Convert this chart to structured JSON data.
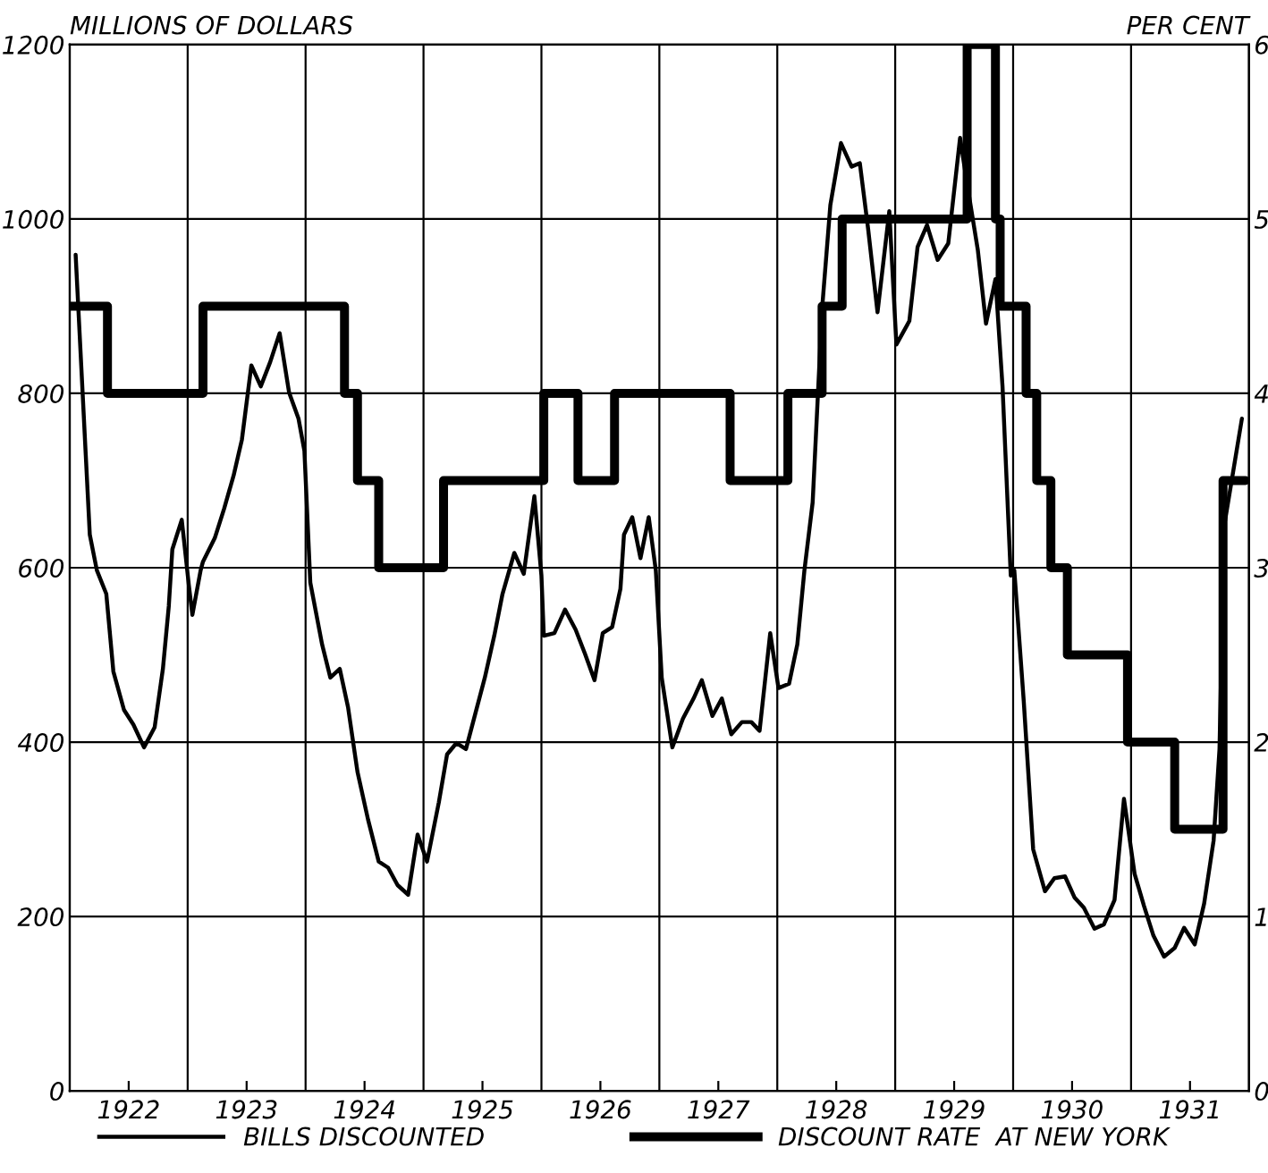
{
  "chart_data": {
    "type": "line",
    "ylabel": "MILLIONS OF DOLLARS",
    "y2label": "PER CENT",
    "xlim": [
      1922,
      1932
    ],
    "xticks": [
      {
        "value": 1923,
        "label": null
      },
      {
        "value": 1924,
        "label": null
      },
      {
        "value": 1925,
        "label": null
      },
      {
        "value": 1926,
        "label": null
      },
      {
        "value": 1927,
        "label": null
      },
      {
        "value": 1928,
        "label": null
      },
      {
        "value": 1929,
        "label": null
      },
      {
        "value": 1930,
        "label": null
      },
      {
        "value": 1931,
        "label": null
      },
      {
        "value": 1922.5,
        "label": "1922"
      },
      {
        "value": 1923.5,
        "label": "1923"
      },
      {
        "value": 1924.5,
        "label": "1924"
      },
      {
        "value": 1925.5,
        "label": "1925"
      },
      {
        "value": 1926.5,
        "label": "1926"
      },
      {
        "value": 1927.5,
        "label": "1927"
      },
      {
        "value": 1928.5,
        "label": "1928"
      },
      {
        "value": 1929.5,
        "label": "1929"
      },
      {
        "value": 1930.5,
        "label": "1930"
      },
      {
        "value": 1931.5,
        "label": "1931"
      }
    ],
    "ylim": [
      0,
      1200
    ],
    "yticks": [
      0,
      200,
      400,
      600,
      800,
      1000,
      1200
    ],
    "y2lim": [
      0,
      6
    ],
    "y2ticks": [
      0,
      1,
      2,
      3,
      4,
      5,
      6
    ],
    "grid": true,
    "legend": "bottom",
    "series": [
      {
        "name": "BILLS DISCOUNTED",
        "type": "line",
        "color": "#000000",
        "x": [
          1922.05,
          1922.17,
          1922.23,
          1922.31,
          1922.37,
          1922.46,
          1922.54,
          1922.63,
          1922.72,
          1922.79,
          1922.84,
          1922.87,
          1922.95,
          1923.01,
          1923.04,
          1923.11,
          1923.13,
          1923.23,
          1923.31,
          1923.39,
          1923.46,
          1923.54,
          1923.62,
          1923.7,
          1923.78,
          1923.86,
          1923.94,
          1923.99,
          1924.04,
          1924.14,
          1924.21,
          1924.29,
          1924.36,
          1924.44,
          1924.53,
          1924.62,
          1924.7,
          1924.78,
          1924.87,
          1924.95,
          1925.03,
          1925.13,
          1925.2,
          1925.28,
          1925.36,
          1925.44,
          1925.52,
          1925.6,
          1925.67,
          1925.77,
          1925.85,
          1925.94,
          1926.0,
          1926.02,
          1926.11,
          1926.2,
          1926.29,
          1926.37,
          1926.45,
          1926.52,
          1926.6,
          1926.67,
          1926.7,
          1926.77,
          1926.84,
          1926.91,
          1926.97,
          1927.02,
          1927.11,
          1927.2,
          1927.29,
          1927.36,
          1927.45,
          1927.53,
          1927.61,
          1927.7,
          1927.78,
          1927.85,
          1927.94,
          1928.01,
          1928.1,
          1928.17,
          1928.23,
          1928.3,
          1928.38,
          1928.45,
          1928.54,
          1928.63,
          1928.7,
          1928.77,
          1928.85,
          1928.95,
          1929.01,
          1929.12,
          1929.19,
          1929.27,
          1929.36,
          1929.45,
          1929.55,
          1929.61,
          1929.7,
          1929.77,
          1929.85,
          1929.91,
          1929.98,
          1930.01,
          1930.09,
          1930.17,
          1930.27,
          1930.35,
          1930.44,
          1930.52,
          1930.6,
          1930.69,
          1930.77,
          1930.86,
          1930.94,
          1931.03,
          1931.11,
          1931.19,
          1931.28,
          1931.37,
          1931.45,
          1931.54,
          1931.62,
          1931.7,
          1931.75,
          1931.79,
          1931.94
        ],
        "values": [
          959,
          638,
          597,
          570,
          481,
          437,
          420,
          394,
          417,
          484,
          556,
          621,
          655,
          580,
          546,
          597,
          607,
          634,
          668,
          706,
          747,
          832,
          808,
          836,
          869,
          801,
          771,
          734,
          583,
          512,
          474,
          484,
          440,
          366,
          311,
          263,
          256,
          236,
          225,
          294,
          263,
          331,
          386,
          399,
          392,
          433,
          474,
          522,
          570,
          617,
          593,
          682,
          591,
          522,
          525,
          552,
          529,
          501,
          471,
          525,
          532,
          576,
          638,
          658,
          611,
          658,
          597,
          474,
          394,
          427,
          450,
          471,
          430,
          450,
          409,
          423,
          423,
          413,
          525,
          462,
          467,
          512,
          597,
          675,
          897,
          1016,
          1087,
          1060,
          1064,
          989,
          893,
          1009,
          856,
          883,
          968,
          993,
          953,
          972,
          1093,
          1040,
          965,
          880,
          931,
          808,
          591,
          597,
          447,
          277,
          229,
          244,
          246,
          222,
          210,
          186,
          191,
          219,
          335,
          249,
          212,
          178,
          154,
          164,
          187,
          168,
          215,
          287,
          392,
          648,
          771
        ]
      },
      {
        "name": "DISCOUNT RATE  AT NEW YORK",
        "type": "step",
        "axis": "y2",
        "color": "#000000",
        "x": [
          1922.0,
          1922.32,
          1923.13,
          1924.33,
          1924.44,
          1924.62,
          1925.17,
          1926.02,
          1926.31,
          1926.62,
          1927.6,
          1928.09,
          1928.38,
          1928.55,
          1929.61,
          1929.85,
          1929.89,
          1930.11,
          1930.2,
          1930.32,
          1930.46,
          1930.97,
          1931.37,
          1931.78,
          1931.97
        ],
        "values": [
          4.5,
          4,
          4.5,
          4,
          3.5,
          3,
          3.5,
          4,
          3.5,
          4,
          3.5,
          4,
          4.5,
          5,
          6,
          5,
          4.5,
          4,
          3.5,
          3,
          2.5,
          2,
          1.5,
          3.5,
          3.5
        ]
      }
    ]
  }
}
